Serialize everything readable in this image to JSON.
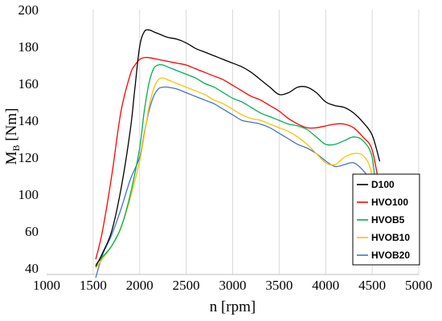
{
  "chart_data": {
    "type": "line",
    "title": "",
    "xlabel": "n [rpm]",
    "ylabel": "M_B [Nm]",
    "ylabel_main": "M",
    "ylabel_sub": "B",
    "ylabel_rest": " [Nm]",
    "xlim": [
      1000,
      5000
    ],
    "ylim": [
      40,
      200
    ],
    "xticks": [
      1000,
      1500,
      2000,
      2500,
      3000,
      3500,
      4000,
      4500,
      5000
    ],
    "yticks": [
      40,
      60,
      100,
      120,
      140,
      160,
      180,
      200
    ],
    "grid": "vertical",
    "legend_position": "bottom-right",
    "series": [
      {
        "name": "D100",
        "color": "#000000",
        "x": [
          1530,
          1600,
          1700,
          1800,
          1900,
          1950,
          2000,
          2050,
          2100,
          2150,
          2200,
          2300,
          2400,
          2500,
          2600,
          2700,
          2800,
          2900,
          3000,
          3100,
          3200,
          3300,
          3400,
          3500,
          3600,
          3700,
          3800,
          3900,
          4000,
          4100,
          4200,
          4300,
          4400,
          4500,
          4580
        ],
        "y": [
          61,
          68,
          80,
          103,
          135,
          158,
          180,
          188,
          189,
          188,
          187,
          185,
          184,
          182,
          179,
          177,
          175,
          173,
          171,
          169,
          166,
          162,
          158,
          154,
          155,
          158,
          158,
          155,
          150,
          148,
          147,
          144,
          139,
          132,
          118
        ]
      },
      {
        "name": "HVO100",
        "color": "#ff0000",
        "x": [
          1530,
          1600,
          1700,
          1800,
          1900,
          1950,
          2000,
          2050,
          2100,
          2200,
          2300,
          2400,
          2500,
          2600,
          2700,
          2800,
          2900,
          3000,
          3100,
          3200,
          3300,
          3400,
          3500,
          3600,
          3700,
          3800,
          3900,
          4000,
          4100,
          4200,
          4300,
          4400,
          4500,
          4580
        ],
        "y": [
          65,
          80,
          110,
          145,
          165,
          170,
          173,
          174,
          174,
          173,
          172,
          171,
          170,
          168,
          166,
          164,
          162,
          159,
          156,
          153,
          151,
          148,
          145,
          141,
          138,
          136,
          136,
          137,
          138,
          138,
          136,
          131,
          124,
          103
        ]
      },
      {
        "name": "HVOB5",
        "color": "#00b050",
        "x": [
          1530,
          1600,
          1700,
          1800,
          1900,
          2000,
          2050,
          2100,
          2150,
          2200,
          2250,
          2300,
          2400,
          2500,
          2600,
          2700,
          2800,
          2900,
          3000,
          3100,
          3200,
          3300,
          3400,
          3500,
          3600,
          3700,
          3800,
          3900,
          4000,
          4100,
          4200,
          4300,
          4400,
          4500,
          4550
        ],
        "y": [
          62,
          66,
          72,
          82,
          100,
          125,
          145,
          160,
          168,
          170,
          170,
          169,
          167,
          165,
          163,
          160,
          158,
          155,
          152,
          150,
          147,
          144,
          142,
          140,
          138,
          137,
          135,
          131,
          127,
          127,
          129,
          131,
          129,
          120,
          95
        ]
      },
      {
        "name": "HVOB10",
        "color": "#ffc000",
        "x": [
          1530,
          1600,
          1700,
          1800,
          1900,
          2000,
          2050,
          2100,
          2150,
          2200,
          2250,
          2300,
          2400,
          2500,
          2600,
          2700,
          2800,
          2900,
          3000,
          3100,
          3200,
          3300,
          3400,
          3500,
          3600,
          3700,
          3800,
          3900,
          4000,
          4100,
          4200,
          4300,
          4400,
          4480,
          4550
        ],
        "y": [
          60,
          65,
          72,
          82,
          98,
          118,
          132,
          147,
          157,
          162,
          163,
          162,
          160,
          158,
          156,
          154,
          151,
          149,
          146,
          143,
          141,
          140,
          138,
          136,
          134,
          131,
          127,
          122,
          117,
          116,
          120,
          122,
          121,
          114,
          95
        ]
      },
      {
        "name": "HVOB20",
        "color": "#4472c4",
        "x": [
          1530,
          1600,
          1700,
          1800,
          1900,
          2000,
          2050,
          2100,
          2150,
          2200,
          2250,
          2300,
          2400,
          2500,
          2600,
          2700,
          2800,
          2900,
          3000,
          3100,
          3200,
          3300,
          3400,
          3500,
          3600,
          3700,
          3800,
          3900,
          4000,
          4100,
          4200,
          4300,
          4400,
          4500,
          4550
        ],
        "y": [
          55,
          67,
          78,
          92,
          108,
          120,
          133,
          145,
          153,
          157,
          158,
          158,
          157,
          155,
          153,
          151,
          149,
          146,
          143,
          140,
          139,
          138,
          136,
          133,
          130,
          127,
          125,
          122,
          118,
          115,
          116,
          117,
          113,
          106,
          98
        ]
      }
    ]
  }
}
